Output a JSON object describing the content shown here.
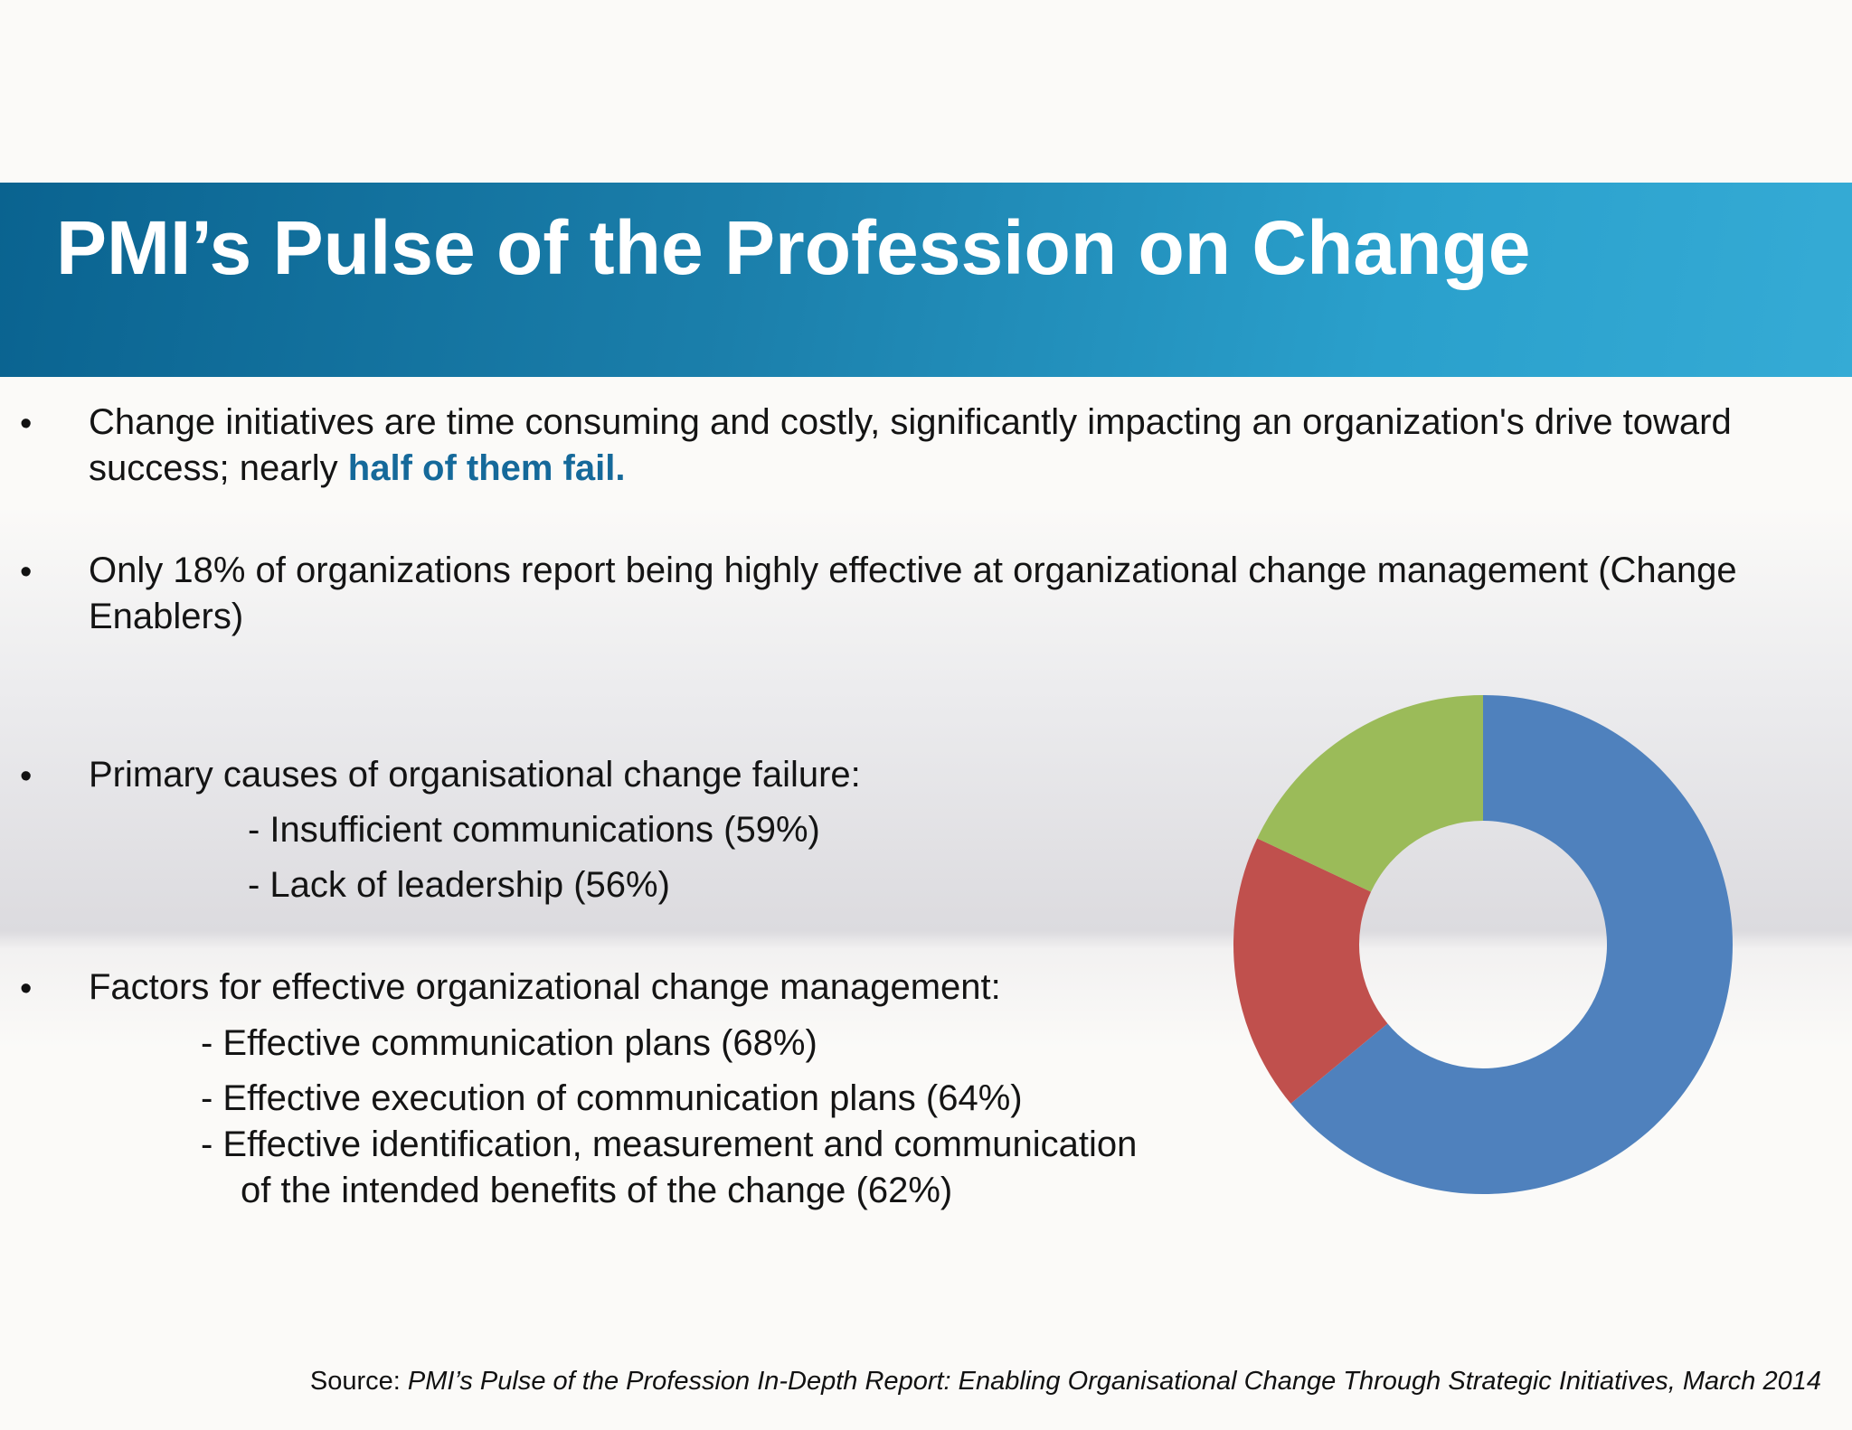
{
  "slide": {
    "title": "PMI’s Pulse of the Profession on Change",
    "bullets": [
      {
        "text_before": "Change initiatives are time consuming and costly, significantly impacting an organization's drive toward success; nearly ",
        "highlight": "half of them fail."
      },
      {
        "text": "Only 18% of organizations report being highly effective at organizational change management (Change Enablers)"
      },
      {
        "text": "Primary causes of organisational change failure:",
        "items": [
          "- Insufficient communications (59%)",
          "- Lack of leadership (56%)"
        ]
      },
      {
        "text": "Factors for effective organizational change management:",
        "items": [
          "- Effective communication plans (68%)",
          "- Effective  execution of communication plans (64%)",
          "- Effective  identification, measurement and communication",
          "of the intended benefits of the change (62%)"
        ]
      }
    ],
    "bullet_symbol": "•",
    "source_label": "Source: ",
    "source_text": "PMI’s Pulse of the Profession In-Depth Report: Enabling Organisational Change Through Strategic Initiatives, March 2014",
    "highlight_color": "#15699a"
  },
  "chart_data": {
    "type": "pie",
    "subtype": "donut",
    "values": [
      64,
      18,
      18
    ],
    "colors": [
      "#4f81bd",
      "#c0504d",
      "#9bbb59"
    ],
    "start": "top",
    "direction": "clockwise",
    "title": "",
    "legend": "none"
  }
}
